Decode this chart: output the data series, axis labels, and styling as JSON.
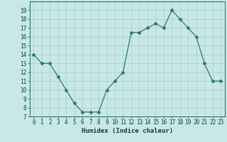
{
  "x": [
    0,
    1,
    2,
    3,
    4,
    5,
    6,
    7,
    8,
    9,
    10,
    11,
    12,
    13,
    14,
    15,
    16,
    17,
    18,
    19,
    20,
    21,
    22,
    23
  ],
  "y": [
    14,
    13,
    13,
    11.5,
    10,
    8.5,
    7.5,
    7.5,
    7.5,
    10,
    11,
    12,
    16.5,
    16.5,
    17,
    17.5,
    17,
    19,
    18,
    17,
    16,
    13,
    11,
    11
  ],
  "line_color": "#2a7a6a",
  "marker": "D",
  "marker_size": 2.5,
  "bg_color": "#c8e8e8",
  "grid_color": "#aacccc",
  "xlabel": "Humidex (Indice chaleur)",
  "xlim": [
    -0.5,
    23.5
  ],
  "ylim": [
    7,
    20
  ],
  "xticks": [
    0,
    1,
    2,
    3,
    4,
    5,
    6,
    7,
    8,
    9,
    10,
    11,
    12,
    13,
    14,
    15,
    16,
    17,
    18,
    19,
    20,
    21,
    22,
    23
  ],
  "yticks": [
    7,
    8,
    9,
    10,
    11,
    12,
    13,
    14,
    15,
    16,
    17,
    18,
    19
  ],
  "tick_fontsize": 5.5,
  "xlabel_fontsize": 6.5,
  "spine_color": "#2a7a6a",
  "tick_color": "#1a3a3a"
}
